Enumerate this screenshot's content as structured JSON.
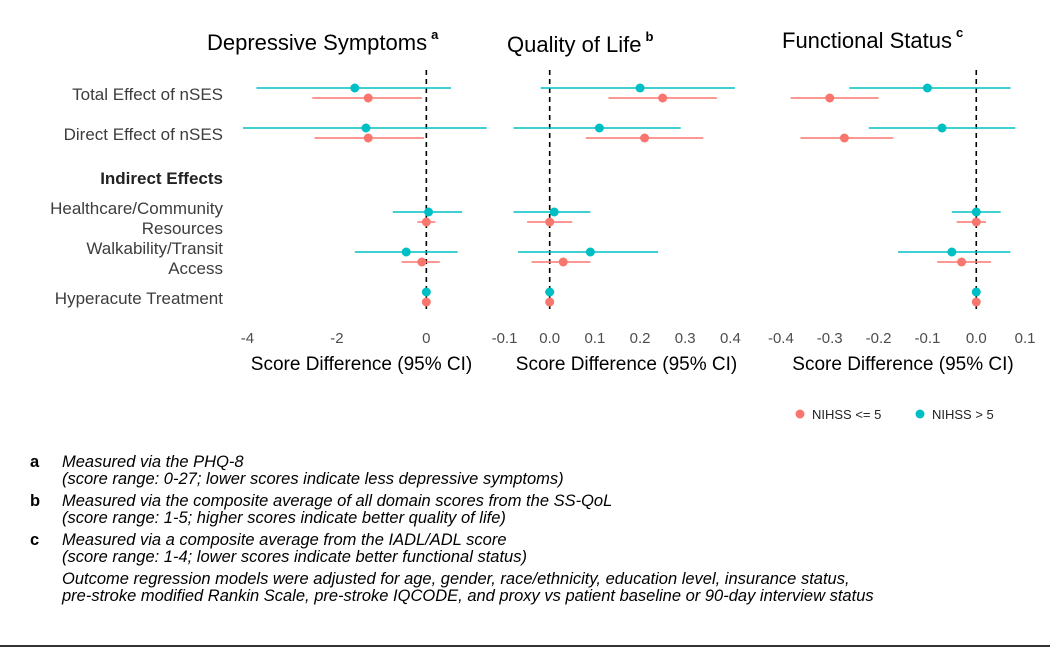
{
  "colors": {
    "low": "#F8766D",
    "high": "#00BFC4",
    "dashed": "#000000"
  },
  "rows": [
    {
      "label": "Total Effect of nSES",
      "lines": [
        "Total Effect of nSES"
      ],
      "bold": false
    },
    {
      "label": "Direct Effect of nSES",
      "lines": [
        "Direct Effect of nSES"
      ],
      "bold": false
    },
    {
      "label": "Indirect Effects",
      "lines": [
        "Indirect Effects"
      ],
      "bold": true
    },
    {
      "label": "Healthcare/Community Resources",
      "lines": [
        "Healthcare/Community",
        "Resources"
      ],
      "bold": false
    },
    {
      "label": "Walkability/Transit Access",
      "lines": [
        "Walkability/Transit",
        "Access"
      ],
      "bold": false
    },
    {
      "label": "Hyperacute Treatment",
      "lines": [
        "Hyperacute Treatment"
      ],
      "bold": false
    }
  ],
  "chart_data": [
    {
      "type": "forest",
      "title": "Depressive Symptoms",
      "superscript": "a",
      "xlabel": "Score Difference (95% CI)",
      "xlim": [
        -4.1,
        1.2
      ],
      "ticks": [
        -4,
        -2,
        0
      ],
      "tick_labels": [
        "-4",
        "-2",
        "0"
      ],
      "reference_line": 0,
      "series": [
        {
          "name": "NIHSS <= 5",
          "color_key": "low",
          "points": [
            {
              "row": 0,
              "est": -1.3,
              "lo": -2.55,
              "hi": -0.1
            },
            {
              "row": 1,
              "est": -1.3,
              "lo": -2.5,
              "hi": -0.05
            },
            {
              "row": 3,
              "est": 0.0,
              "lo": -0.2,
              "hi": 0.2
            },
            {
              "row": 4,
              "est": -0.1,
              "lo": -0.55,
              "hi": 0.3
            },
            {
              "row": 5,
              "est": 0.0,
              "lo": -0.05,
              "hi": 0.05
            }
          ]
        },
        {
          "name": "NIHSS > 5",
          "color_key": "high",
          "points": [
            {
              "row": 0,
              "est": -1.6,
              "lo": -3.8,
              "hi": 0.55
            },
            {
              "row": 1,
              "est": -1.35,
              "lo": -4.1,
              "hi": 1.35
            },
            {
              "row": 3,
              "est": 0.05,
              "lo": -0.75,
              "hi": 0.8
            },
            {
              "row": 4,
              "est": -0.45,
              "lo": -1.6,
              "hi": 0.7
            },
            {
              "row": 5,
              "est": 0.0,
              "lo": -0.05,
              "hi": 0.05
            }
          ]
        }
      ]
    },
    {
      "type": "forest",
      "title": "Quality of Life",
      "superscript": "b",
      "xlabel": "Score Difference (95% CI)",
      "xlim": [
        -0.11,
        0.45
      ],
      "ticks": [
        -0.1,
        0.0,
        0.1,
        0.2,
        0.3,
        0.4
      ],
      "tick_labels": [
        "-0.1",
        "0.0",
        "0.1",
        "0.2",
        "0.3",
        "0.4"
      ],
      "reference_line": 0,
      "series": [
        {
          "name": "NIHSS <= 5",
          "color_key": "low",
          "points": [
            {
              "row": 0,
              "est": 0.25,
              "lo": 0.13,
              "hi": 0.37
            },
            {
              "row": 1,
              "est": 0.21,
              "lo": 0.08,
              "hi": 0.34
            },
            {
              "row": 3,
              "est": 0.0,
              "lo": -0.05,
              "hi": 0.05
            },
            {
              "row": 4,
              "est": 0.03,
              "lo": -0.04,
              "hi": 0.09
            },
            {
              "row": 5,
              "est": 0.0,
              "lo": -0.005,
              "hi": 0.005
            }
          ]
        },
        {
          "name": "NIHSS > 5",
          "color_key": "high",
          "points": [
            {
              "row": 0,
              "est": 0.2,
              "lo": -0.02,
              "hi": 0.41
            },
            {
              "row": 1,
              "est": 0.11,
              "lo": -0.08,
              "hi": 0.29
            },
            {
              "row": 3,
              "est": 0.01,
              "lo": -0.08,
              "hi": 0.09
            },
            {
              "row": 4,
              "est": 0.09,
              "lo": -0.07,
              "hi": 0.24
            },
            {
              "row": 5,
              "est": 0.0,
              "lo": -0.01,
              "hi": 0.01
            }
          ]
        }
      ]
    },
    {
      "type": "forest",
      "title": "Functional Status",
      "superscript": "c",
      "xlabel": "Score Difference (95% CI)",
      "xlim": [
        -0.41,
        0.11
      ],
      "ticks": [
        -0.4,
        -0.3,
        -0.2,
        -0.1,
        0.0,
        0.1
      ],
      "tick_labels": [
        "-0.4",
        "-0.3",
        "-0.2",
        "-0.1",
        "0.0",
        "0.1"
      ],
      "reference_line": 0,
      "series": [
        {
          "name": "NIHSS <= 5",
          "color_key": "low",
          "points": [
            {
              "row": 0,
              "est": -0.3,
              "lo": -0.38,
              "hi": -0.2
            },
            {
              "row": 1,
              "est": -0.27,
              "lo": -0.36,
              "hi": -0.17
            },
            {
              "row": 3,
              "est": 0.0,
              "lo": -0.04,
              "hi": 0.02
            },
            {
              "row": 4,
              "est": -0.03,
              "lo": -0.08,
              "hi": 0.03
            },
            {
              "row": 5,
              "est": 0.0,
              "lo": -0.005,
              "hi": 0.005
            }
          ]
        },
        {
          "name": "NIHSS > 5",
          "color_key": "high",
          "points": [
            {
              "row": 0,
              "est": -0.1,
              "lo": -0.26,
              "hi": 0.07
            },
            {
              "row": 1,
              "est": -0.07,
              "lo": -0.22,
              "hi": 0.08
            },
            {
              "row": 3,
              "est": 0.0,
              "lo": -0.05,
              "hi": 0.05
            },
            {
              "row": 4,
              "est": -0.05,
              "lo": -0.16,
              "hi": 0.07
            },
            {
              "row": 5,
              "est": 0.0,
              "lo": -0.005,
              "hi": 0.005
            }
          ]
        }
      ]
    }
  ],
  "legend": [
    {
      "label": "NIHSS <= 5",
      "color_key": "low"
    },
    {
      "label": "NIHSS > 5",
      "color_key": "high"
    }
  ],
  "footnotes": [
    {
      "key": "a",
      "lines": [
        "Measured via the PHQ-8",
        "(score range: 0-27; lower scores indicate less depressive symptoms)"
      ]
    },
    {
      "key": "b",
      "lines": [
        "Measured via the composite average of all domain scores from the SS-QoL",
        "(score range: 1-5; higher scores indicate better quality of life)"
      ]
    },
    {
      "key": "c",
      "lines": [
        "Measured via a composite average from the IADL/ADL score",
        "(score range: 1-4; lower scores indicate better functional status)"
      ]
    },
    {
      "key": "",
      "lines": [
        "Outcome regression models were adjusted for age, gender, race/ethnicity, education level, insurance status,",
        "pre-stroke modified Rankin Scale, pre-stroke IQCODE, and proxy vs patient baseline or 90-day interview status"
      ]
    }
  ]
}
